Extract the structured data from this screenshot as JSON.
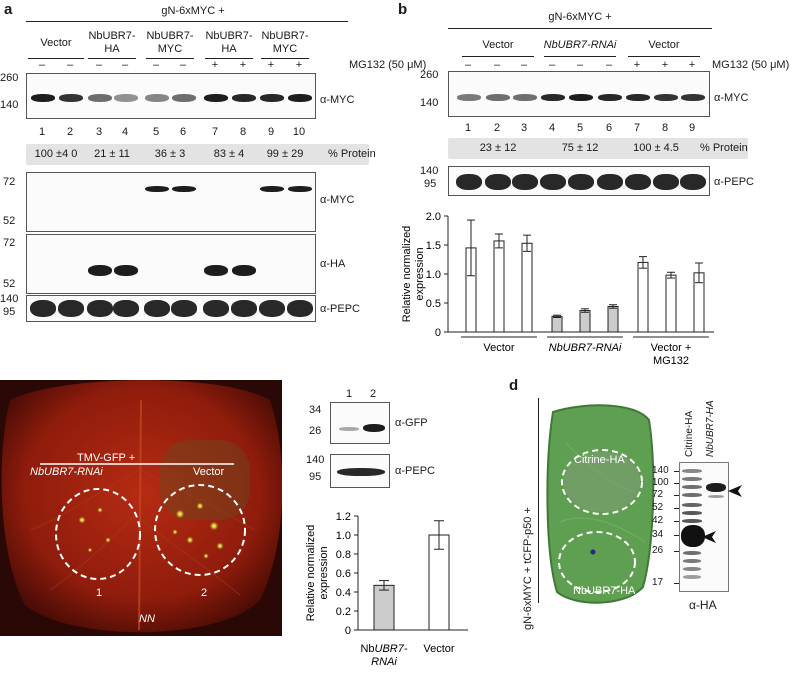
{
  "panel_a": {
    "label": "a",
    "construct": "gN-6xMYC +",
    "groups": [
      "Vector",
      "NbUBR7-\nHA",
      "NbUBR7-\nMYC",
      "NbUBR7-\nHA",
      "NbUBR7-\nMYC"
    ],
    "group_lines": [
      [
        "Vector"
      ],
      [
        "NbUBR7-",
        "HA"
      ],
      [
        "NbUBR7-",
        "MYC"
      ],
      [
        "NbUBR7-",
        "HA"
      ],
      [
        "NbUBR7-",
        "MYC"
      ]
    ],
    "mg132_label": "MG132 (50 μM)",
    "mg132": [
      "–",
      "–",
      "–",
      "–",
      "–",
      "–",
      "+",
      "+",
      "+",
      "+"
    ],
    "lanes": [
      "1",
      "2",
      "3",
      "4",
      "5",
      "6",
      "7",
      "8",
      "9",
      "10"
    ],
    "mw_top": [
      "260",
      "140"
    ],
    "protein": [
      "100 ±4 0",
      "21 ± 11",
      "36 ± 3",
      "83 ± 4",
      "99 ± 29"
    ],
    "protein_label": "% Protein",
    "mw_mid": [
      "72",
      "52"
    ],
    "mw_ha": [
      "72",
      "52"
    ],
    "mw_pepc": [
      "140",
      "95"
    ],
    "ab": [
      "α-MYC",
      "α-MYC",
      "α-HA",
      "α-PEPC"
    ]
  },
  "panel_b": {
    "label": "b",
    "construct": "gN-6xMYC +",
    "groups": [
      "Vector",
      "NbUBR7-RNAi",
      "Vector"
    ],
    "mg132_label": "MG132 (50 μM)",
    "mg132": [
      "–",
      "–",
      "–",
      "–",
      "–",
      "–",
      "+",
      "+",
      "+"
    ],
    "lanes": [
      "1",
      "2",
      "3",
      "4",
      "5",
      "6",
      "7",
      "8",
      "9"
    ],
    "mw_top": [
      "260",
      "140"
    ],
    "protein": [
      "23 ± 12",
      "75 ± 12",
      "100 ± 4.5"
    ],
    "protein_label": "% Protein",
    "mw_pepc": [
      "140",
      "95"
    ],
    "ab": [
      "α-MYC",
      "α-PEPC"
    ],
    "chart_data": {
      "type": "bar",
      "ylabel": "Relative normalized\nexpression",
      "ylabel_lines": [
        "Relative normalized",
        "expression"
      ],
      "ylim": [
        0,
        2.0
      ],
      "yticks": [
        "0",
        "0.5",
        "1.0",
        "1.5",
        "2.0"
      ],
      "values": [
        1.45,
        1.57,
        1.53,
        0.27,
        0.37,
        0.44,
        1.2,
        0.98,
        1.02
      ],
      "errors": [
        0.48,
        0.12,
        0.14,
        0.02,
        0.03,
        0.03,
        0.1,
        0.05,
        0.17
      ],
      "fills": [
        "#ffffff",
        "#ffffff",
        "#ffffff",
        "#cccccc",
        "#cccccc",
        "#cccccc",
        "#ffffff",
        "#ffffff",
        "#ffffff"
      ],
      "group_labels": [
        "Vector",
        "NbUBR7-RNAi",
        "Vector +\nMG132"
      ],
      "group_label_lines": [
        [
          "Vector"
        ],
        [
          "NbUBR7-RNAi"
        ],
        [
          "Vector +",
          "MG132"
        ]
      ]
    }
  },
  "panel_c": {
    "label": "c",
    "leaf_title": "TMV-GFP +",
    "left_label": "NbUBR7-RNAi",
    "right_label": "Vector",
    "spot1": "1",
    "spot2": "2",
    "genotype": "NN",
    "lanes": [
      "1",
      "2"
    ],
    "mw_gfp": [
      "34",
      "26"
    ],
    "mw_pepc": [
      "140",
      "95"
    ],
    "ab": [
      "α-GFP",
      "α-PEPC"
    ],
    "chart_data": {
      "type": "bar",
      "ylabel_lines": [
        "Relative normalized",
        "expression"
      ],
      "ylim": [
        0,
        1.2
      ],
      "yticks": [
        "0",
        "0.2",
        "0.4",
        "0.6",
        "0.8",
        "1.0",
        "1.2"
      ],
      "values": [
        0.47,
        1.0
      ],
      "errors": [
        0.05,
        0.15
      ],
      "fills": [
        "#cccccc",
        "#ffffff"
      ],
      "categories_lines": [
        [
          "Nb",
          "UBR7-",
          "RNAi"
        ],
        [
          "Vector"
        ]
      ]
    }
  },
  "panel_d": {
    "label": "d",
    "side_label": "gN-6xMYC + tCFP-p50 +",
    "top_spot": "Citrine-HA",
    "bottom_spot": "NbUBR7-HA",
    "lane_labels": [
      "Citrine-HA",
      "NbUBR7-HA"
    ],
    "mw": [
      "140",
      "100",
      "72",
      "52",
      "42",
      "34",
      "26",
      "17"
    ],
    "ab": "α-HA"
  }
}
